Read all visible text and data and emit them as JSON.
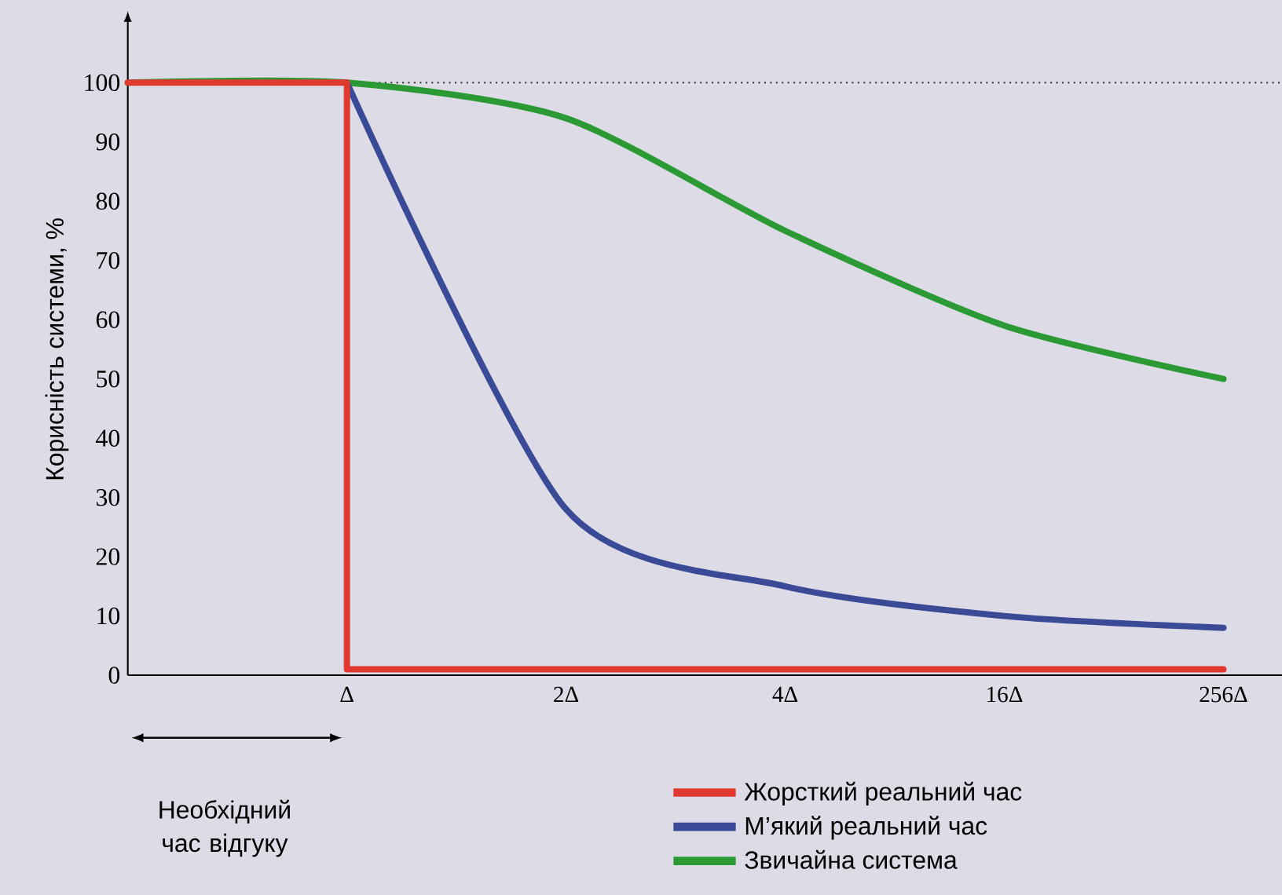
{
  "chart_data": {
    "type": "line",
    "ylabel": "Корисність системи, %",
    "categories": [
      null,
      "Δ",
      "2Δ",
      "4Δ",
      "16Δ",
      "256Δ"
    ],
    "ylim": [
      0,
      110
    ],
    "yticks": [
      0,
      10,
      20,
      30,
      40,
      50,
      60,
      70,
      80,
      90,
      100
    ],
    "grid": false,
    "legend": "bottom right",
    "marker": "none",
    "line_style": "solid",
    "ref_lines": [
      {
        "axis": "y",
        "value": 100,
        "color": "#333333",
        "line_style": "dotted"
      }
    ],
    "annotations": [
      "Необхідний час відгуку"
    ],
    "series": [
      {
        "name": "Жорсткий реальний час",
        "type": "step",
        "color": "#e03a30",
        "values": [
          100,
          1,
          1,
          1,
          1,
          1
        ]
      },
      {
        "name": "М’який реальний час",
        "color": "#3a4a96",
        "values": [
          null,
          100,
          28,
          15,
          10,
          8
        ]
      },
      {
        "name": "Звичайна система",
        "color": "#2b9a34",
        "values": [
          100,
          100,
          94,
          75,
          59,
          50
        ]
      }
    ]
  }
}
